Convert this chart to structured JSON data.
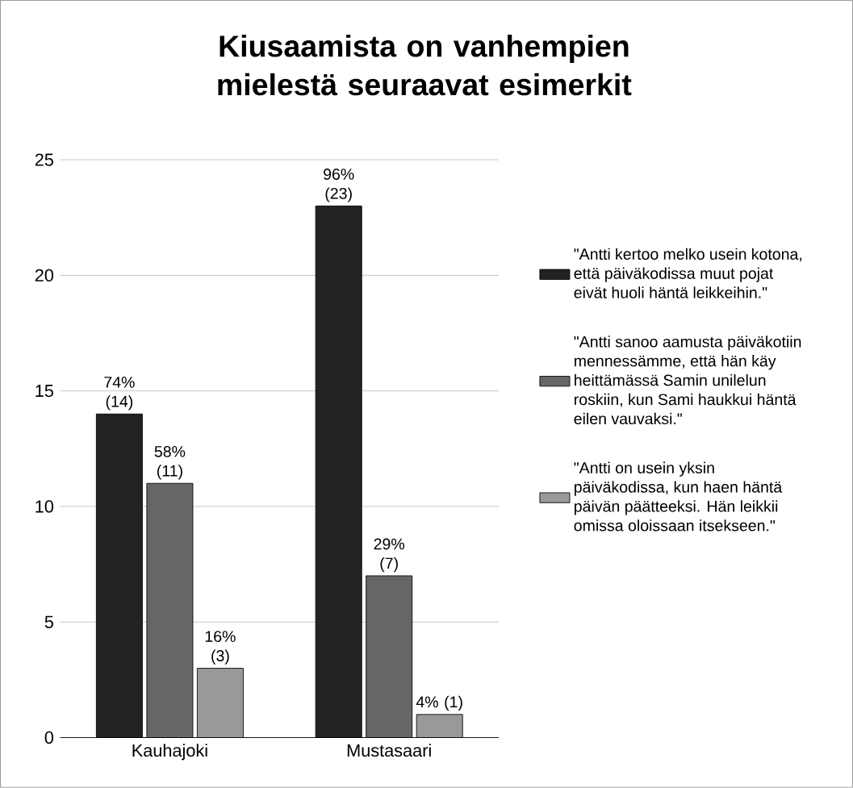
{
  "chart_data": {
    "type": "bar",
    "title": "Kiusaamista on vanhempien mielestä seuraavat esimerkit",
    "categories": [
      "Kauhajoki",
      "Mustasaari"
    ],
    "series": [
      {
        "name": "\"Antti kertoo melko usein kotona, että päiväkodissa muut pojat eivät huoli häntä leikkeihin.\"",
        "color": "#222222",
        "values": [
          14,
          23
        ],
        "value_labels": [
          "74% (14)",
          "96% (23)"
        ]
      },
      {
        "name": "\"Antti sanoo aamusta päiväkotiin mennessämme, että hän käy heittämässä Samin unilelun roskiin, kun Sami haukkui häntä eilen vauvaksi.\"",
        "color": "#666666",
        "values": [
          11,
          7
        ],
        "value_labels": [
          "58% (11)",
          "29% (7)"
        ]
      },
      {
        "name": "\"Antti on usein yksin päiväkodissa, kun haen häntä päivän päätteeksi. Hän leikkii omissa oloissaan itsekseen.\"",
        "color": "#999999",
        "values": [
          3,
          1
        ],
        "value_labels": [
          "16% (3)",
          "4% (1)"
        ]
      }
    ],
    "ylim": [
      0,
      25
    ],
    "yticks": [
      0,
      5,
      10,
      15,
      20,
      25
    ],
    "grid": "y",
    "legend": "right"
  }
}
